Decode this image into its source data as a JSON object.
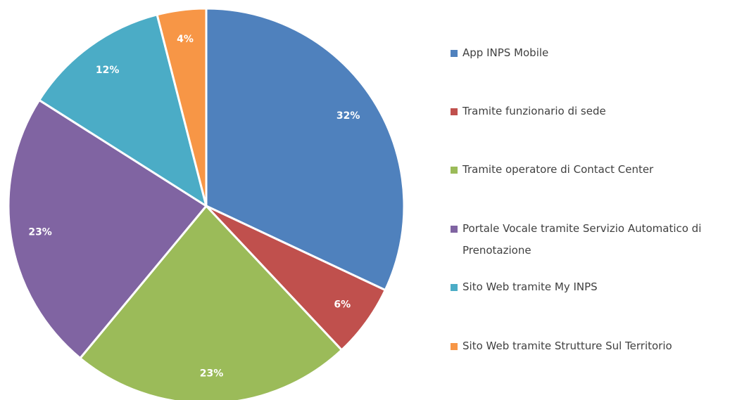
{
  "chart_data": {
    "type": "pie",
    "categories": [
      "App INPS Mobile",
      "Tramite funzionario di sede",
      "Tramite operatore di Contact Center",
      "Portale Vocale tramite Servizio Automatico di Prenotazione",
      "Sito Web tramite My INPS",
      "Sito Web tramite Strutture Sul Territorio"
    ],
    "values": [
      32,
      6,
      23,
      23,
      12,
      4
    ],
    "value_labels": [
      "32%",
      "6%",
      "23%",
      "23%",
      "12%",
      "4%"
    ],
    "colors": [
      "#4f81bd",
      "#c0504d",
      "#9bbb59",
      "#8064a2",
      "#4bacc6",
      "#f79646"
    ],
    "legend": "right"
  }
}
